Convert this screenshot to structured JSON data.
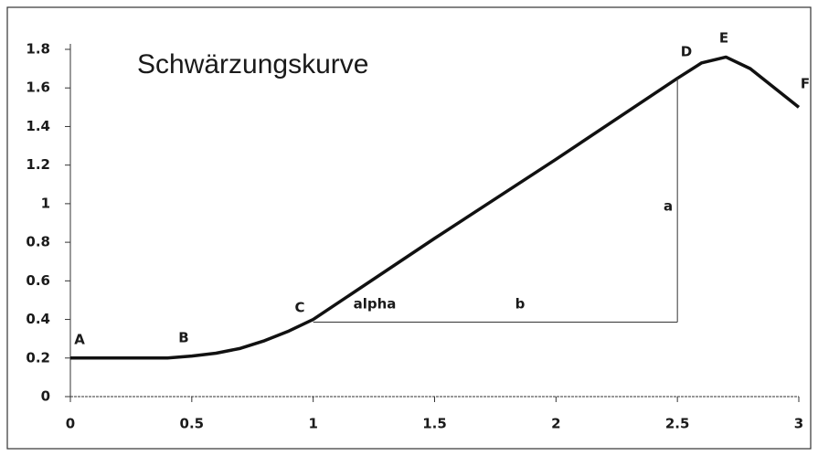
{
  "chart_data": {
    "type": "line",
    "title": "Schwärzungskurve",
    "x": [
      0,
      0.4,
      0.5,
      0.6,
      0.7,
      0.8,
      0.9,
      1,
      1.5,
      2,
      2.5,
      2.6,
      2.7,
      2.8,
      2.9,
      3
    ],
    "series": [
      {
        "name": "Schwärzungskurve",
        "color": "#111111",
        "values": [
          0.2,
          0.2,
          0.21,
          0.225,
          0.25,
          0.29,
          0.34,
          0.4,
          0.82,
          1.23,
          1.65,
          1.73,
          1.76,
          1.7,
          1.6,
          1.5
        ]
      }
    ],
    "xlim": [
      0,
      3
    ],
    "xticks": [
      0,
      0.5,
      1,
      1.5,
      2,
      2.5,
      3
    ],
    "ylim": [
      0,
      1.8
    ],
    "yticks": [
      0,
      0.2,
      0.4,
      0.6,
      0.8,
      1,
      1.2,
      1.4,
      1.6,
      1.8
    ],
    "annotations": [
      "A",
      "B",
      "C",
      "alpha",
      "b",
      "a",
      "D",
      "E",
      "F"
    ],
    "grid": false
  }
}
